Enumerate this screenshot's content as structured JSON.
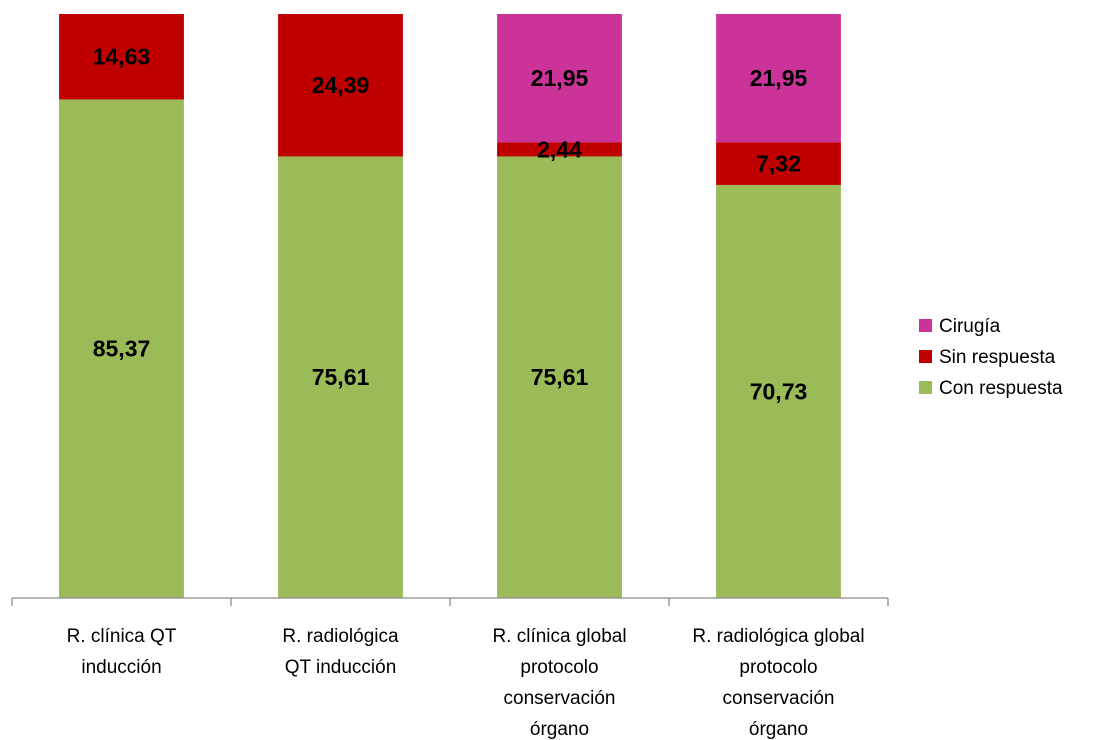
{
  "chart_data": {
    "type": "bar",
    "stacked": true,
    "categories": [
      [
        "R. clínica QT",
        "inducción"
      ],
      [
        "R. radiológica",
        "QT inducción"
      ],
      [
        "R. clínica global",
        "protocolo",
        "conservación",
        "órgano"
      ],
      [
        "R. radiológica global",
        "protocolo",
        "conservación",
        "órgano"
      ]
    ],
    "series": [
      {
        "name": "Con respuesta",
        "color": "#9bbb59",
        "values": [
          85.37,
          75.61,
          75.61,
          70.73
        ],
        "labels": [
          "85,37",
          "75,61",
          "75,61",
          "70,73"
        ]
      },
      {
        "name": "Sin respuesta",
        "color": "#c00000",
        "values": [
          14.63,
          24.39,
          2.44,
          7.32
        ],
        "labels": [
          "14,63",
          "24,39",
          "2,44",
          "7,32"
        ]
      },
      {
        "name": "Cirugía",
        "color": "#cc3399",
        "values": [
          0,
          0,
          21.95,
          21.95
        ],
        "labels": [
          "",
          "",
          "21,95",
          "21,95"
        ]
      }
    ],
    "ylim": [
      0,
      100
    ],
    "grid": false,
    "legend_position": "right",
    "legend_order": [
      "Cirugía",
      "Sin respuesta",
      "Con respuesta"
    ]
  }
}
